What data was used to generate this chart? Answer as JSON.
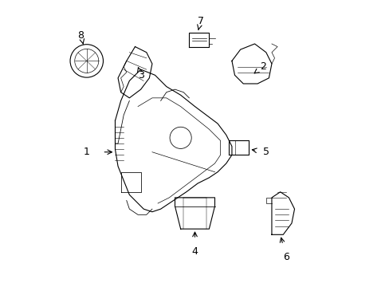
{
  "background_color": "#ffffff",
  "line_color": "#000000",
  "fig_width": 4.89,
  "fig_height": 3.6,
  "dpi": 100,
  "label_fontsize": 9
}
